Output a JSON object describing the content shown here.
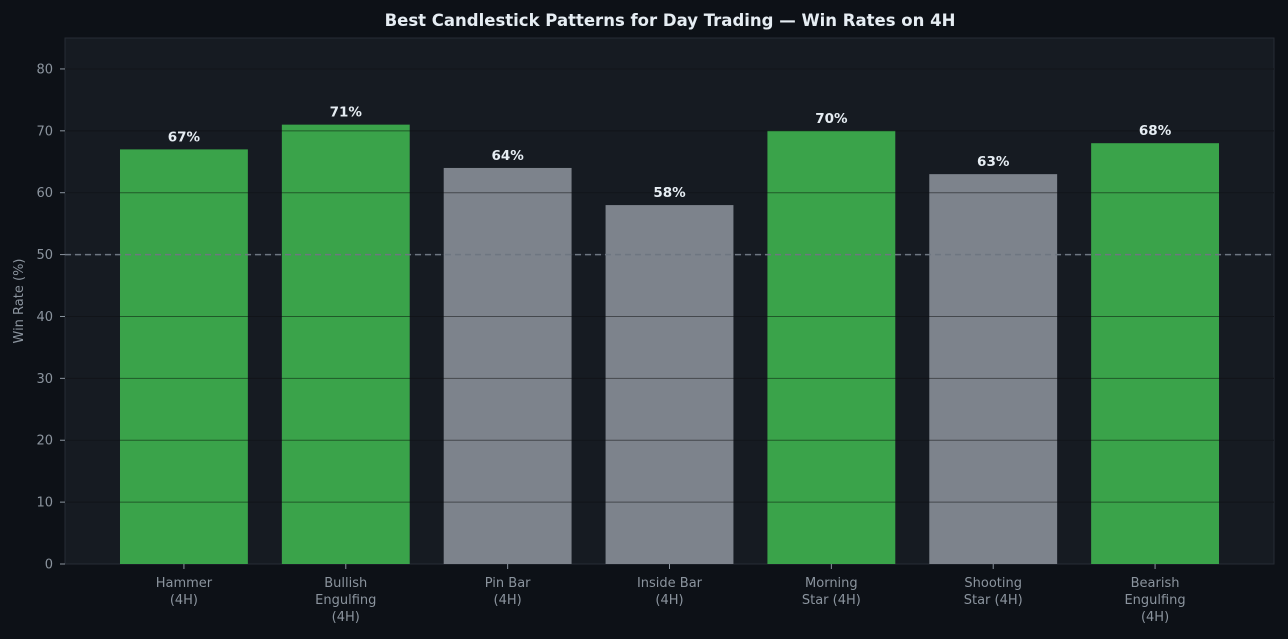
{
  "chart_data": {
    "type": "bar",
    "title": "Best Candlestick Patterns for Day Trading — Win Rates on 4H",
    "xlabel": "",
    "ylabel": "Win Rate (%)",
    "ylim": [
      0,
      85
    ],
    "yticks": [
      0,
      10,
      20,
      30,
      40,
      50,
      60,
      70,
      80
    ],
    "grid": true,
    "reference_line": {
      "value": 50,
      "style": "dashed"
    },
    "categories": [
      [
        "Hammer",
        "(4H)"
      ],
      [
        "Bullish",
        "Engulfing",
        "(4H)"
      ],
      [
        "Pin Bar",
        "(4H)"
      ],
      [
        "Inside Bar",
        "(4H)"
      ],
      [
        "Morning",
        "Star (4H)"
      ],
      [
        "Shooting",
        "Star (4H)"
      ],
      [
        "Bearish",
        "Engulfing",
        "(4H)"
      ]
    ],
    "values": [
      67,
      71,
      64,
      58,
      70,
      63,
      68
    ],
    "data_labels": [
      "67%",
      "71%",
      "64%",
      "58%",
      "70%",
      "63%",
      "68%"
    ],
    "highlighted": [
      true,
      true,
      false,
      false,
      true,
      false,
      true
    ],
    "colors": {
      "background": "#0d1117",
      "plot_background": "#161b22",
      "highlight_bar": "#3aa34a",
      "normal_bar": "#7d838c",
      "grid": "#2a3039",
      "reference_line": "#6e7681",
      "text": "#e6edf3",
      "muted_text": "#8b949e"
    }
  }
}
